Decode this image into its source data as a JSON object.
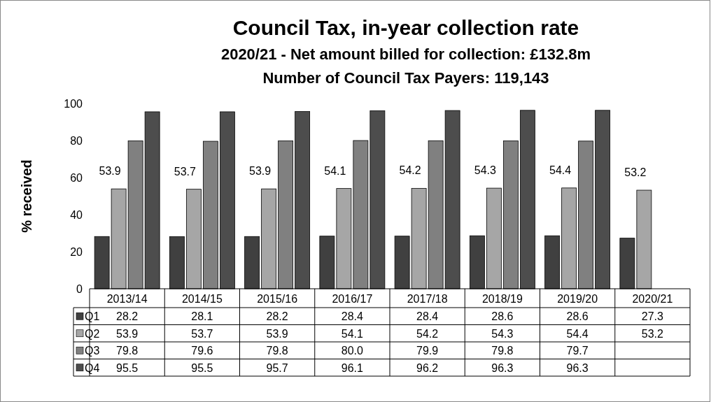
{
  "chart_data": {
    "type": "bar",
    "title": "Council Tax, in-year collection rate",
    "subtitle": "2020/21 - Net amount billed for collection: £132.8m\nNumber of Council Tax Payers: 119,143",
    "ylabel": "% received",
    "categories": [
      "2013/14",
      "2014/15",
      "2015/16",
      "2016/17",
      "2017/18",
      "2018/19",
      "2019/20",
      "2020/21"
    ],
    "series": [
      {
        "name": "Q1",
        "color": "#404040",
        "values": [
          28.2,
          28.1,
          28.2,
          28.4,
          28.4,
          28.6,
          28.6,
          27.3
        ],
        "value_labels": [
          "28.2",
          "28.1",
          "28.2",
          "28.4",
          "28.4",
          "28.6",
          "28.6",
          "27.3"
        ]
      },
      {
        "name": "Q2",
        "color": "#a6a6a6",
        "values": [
          53.9,
          53.7,
          53.9,
          54.1,
          54.2,
          54.3,
          54.4,
          53.2
        ],
        "value_labels": [
          "53.9",
          "53.7",
          "53.9",
          "54.1",
          "54.2",
          "54.3",
          "54.4",
          "53.2"
        ]
      },
      {
        "name": "Q3",
        "color": "#808080",
        "values": [
          79.8,
          79.6,
          79.8,
          80.0,
          79.9,
          79.8,
          79.7,
          null
        ],
        "value_labels": [
          "79.8",
          "79.6",
          "79.8",
          "80.0",
          "79.9",
          "79.8",
          "79.7",
          null
        ]
      },
      {
        "name": "Q4",
        "color": "#4d4d4d",
        "values": [
          95.5,
          95.5,
          95.7,
          96.1,
          96.2,
          96.3,
          96.3,
          null
        ],
        "value_labels": [
          "95.5",
          "95.5",
          "95.7",
          "96.1",
          "96.2",
          "96.3",
          "96.3",
          null
        ]
      }
    ],
    "annotations": [
      {
        "text": "53.9",
        "x": "2013/14",
        "y": 53.9
      },
      {
        "text": "53.7",
        "x": "2014/15",
        "y": 53.7
      },
      {
        "text": "53.9",
        "x": "2015/16",
        "y": 53.9
      },
      {
        "text": "54.1",
        "x": "2016/17",
        "y": 54.1
      },
      {
        "text": "54.2",
        "x": "2017/18",
        "y": 54.2
      },
      {
        "text": "54.3",
        "x": "2018/19",
        "y": 54.3
      },
      {
        "text": "54.4",
        "x": "2019/20",
        "y": 54.4
      },
      {
        "text": "53.2",
        "x": "2020/21",
        "y": 53.2
      }
    ],
    "ylim": [
      0,
      100
    ],
    "yticks": [
      0,
      20,
      40,
      60,
      80,
      100
    ],
    "grid": false,
    "legend": "bottom"
  }
}
